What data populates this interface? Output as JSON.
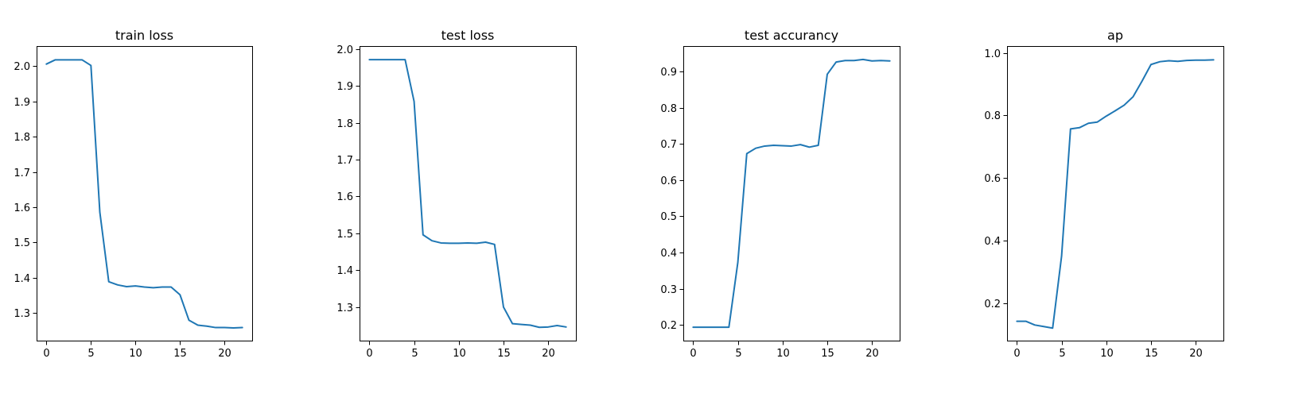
{
  "colors": {
    "series": "#1f77b4",
    "axes": "#000000",
    "background": "#ffffff"
  },
  "chart_data": [
    {
      "type": "line",
      "title": "train loss",
      "xlabel": "",
      "ylabel": "",
      "xlim": [
        -1.1,
        23.1
      ],
      "ylim": [
        1.222,
        2.057
      ],
      "x_ticks": [
        0,
        5,
        10,
        15,
        20
      ],
      "y_ticks": [
        1.3,
        1.4,
        1.5,
        1.6,
        1.7,
        1.8,
        1.9,
        2.0
      ],
      "y_tick_labels": [
        "1.3",
        "1.4",
        "1.5",
        "1.6",
        "1.7",
        "1.8",
        "1.9",
        "2.0"
      ],
      "grid": false,
      "legend": "none",
      "x": [
        0,
        1,
        2,
        3,
        4,
        5,
        6,
        7,
        8,
        9,
        10,
        11,
        12,
        13,
        14,
        15,
        16,
        17,
        18,
        19,
        20,
        21,
        22
      ],
      "series": [
        {
          "values": [
            2.006,
            2.018,
            2.018,
            2.018,
            2.018,
            2.002,
            1.586,
            1.389,
            1.38,
            1.375,
            1.377,
            1.374,
            1.372,
            1.374,
            1.374,
            1.352,
            1.28,
            1.266,
            1.263,
            1.259,
            1.259,
            1.258,
            1.259
          ]
        }
      ]
    },
    {
      "type": "line",
      "title": "test loss",
      "xlabel": "",
      "ylabel": "",
      "xlim": [
        -1.1,
        23.1
      ],
      "ylim": [
        1.209,
        2.008
      ],
      "x_ticks": [
        0,
        5,
        10,
        15,
        20
      ],
      "y_ticks": [
        1.3,
        1.4,
        1.5,
        1.6,
        1.7,
        1.8,
        1.9,
        2.0
      ],
      "y_tick_labels": [
        "1.3",
        "1.4",
        "1.5",
        "1.6",
        "1.7",
        "1.8",
        "1.9",
        "2.0"
      ],
      "grid": false,
      "legend": "none",
      "x": [
        0,
        1,
        2,
        3,
        4,
        5,
        6,
        7,
        8,
        9,
        10,
        11,
        12,
        13,
        14,
        15,
        16,
        17,
        18,
        19,
        20,
        21,
        22
      ],
      "series": [
        {
          "values": [
            1.971,
            1.971,
            1.971,
            1.971,
            1.971,
            1.858,
            1.496,
            1.48,
            1.474,
            1.473,
            1.473,
            1.474,
            1.473,
            1.476,
            1.47,
            1.3,
            1.255,
            1.253,
            1.251,
            1.245,
            1.246,
            1.25,
            1.246
          ]
        }
      ]
    },
    {
      "type": "line",
      "title": "test accurancy",
      "xlabel": "",
      "ylabel": "",
      "xlim": [
        -1.1,
        23.1
      ],
      "ylim": [
        0.157,
        0.97
      ],
      "x_ticks": [
        0,
        5,
        10,
        15,
        20
      ],
      "y_ticks": [
        0.2,
        0.3,
        0.4,
        0.5,
        0.6,
        0.7,
        0.8,
        0.9
      ],
      "y_tick_labels": [
        "0.2",
        "0.3",
        "0.4",
        "0.5",
        "0.6",
        "0.7",
        "0.8",
        "0.9"
      ],
      "grid": false,
      "legend": "none",
      "x": [
        0,
        1,
        2,
        3,
        4,
        5,
        6,
        7,
        8,
        9,
        10,
        11,
        12,
        13,
        14,
        15,
        16,
        17,
        18,
        19,
        20,
        21,
        22
      ],
      "series": [
        {
          "values": [
            0.194,
            0.194,
            0.194,
            0.194,
            0.194,
            0.373,
            0.673,
            0.688,
            0.694,
            0.696,
            0.695,
            0.694,
            0.698,
            0.691,
            0.696,
            0.892,
            0.926,
            0.93,
            0.93,
            0.933,
            0.929,
            0.93,
            0.929
          ]
        }
      ]
    },
    {
      "type": "line",
      "title": "ap",
      "xlabel": "",
      "ylabel": "",
      "xlim": [
        -1.1,
        23.1
      ],
      "ylim": [
        0.08,
        1.022
      ],
      "x_ticks": [
        0,
        5,
        10,
        15,
        20
      ],
      "y_ticks": [
        0.2,
        0.4,
        0.6,
        0.8,
        1.0
      ],
      "y_tick_labels": [
        "0.2",
        "0.4",
        "0.6",
        "0.8",
        "1.0"
      ],
      "grid": false,
      "legend": "none",
      "x": [
        0,
        1,
        2,
        3,
        4,
        5,
        6,
        7,
        8,
        9,
        10,
        11,
        12,
        13,
        14,
        15,
        16,
        17,
        18,
        19,
        20,
        21,
        22
      ],
      "series": [
        {
          "values": [
            0.142,
            0.142,
            0.13,
            0.125,
            0.12,
            0.35,
            0.757,
            0.761,
            0.775,
            0.779,
            0.798,
            0.815,
            0.833,
            0.86,
            0.91,
            0.963,
            0.972,
            0.975,
            0.973,
            0.976,
            0.977,
            0.977,
            0.978
          ]
        }
      ]
    }
  ]
}
